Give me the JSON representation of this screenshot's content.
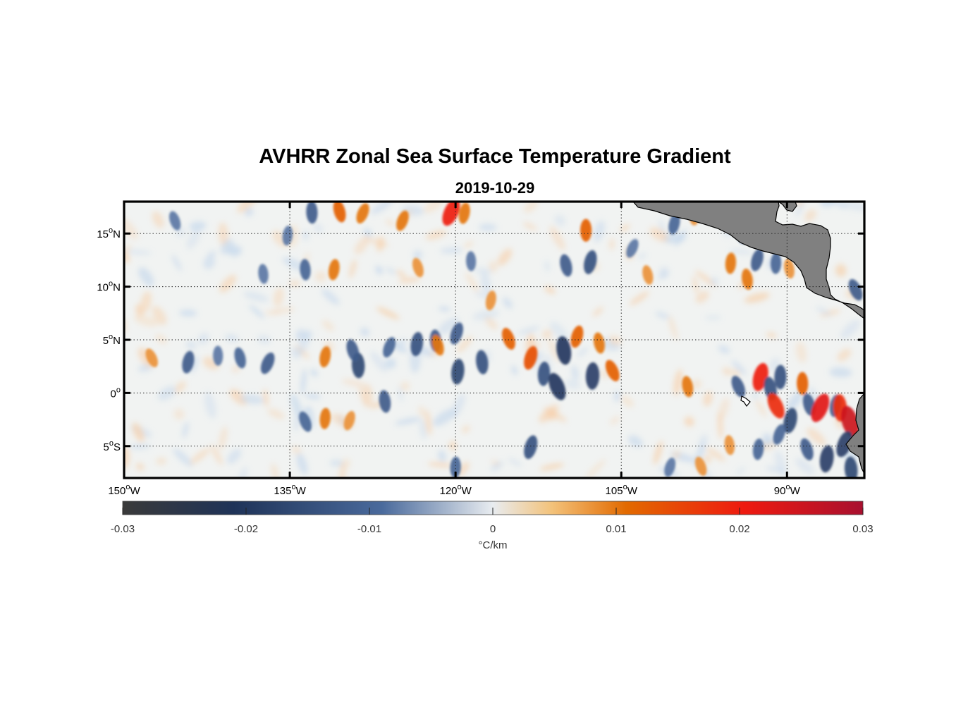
{
  "title": "AVHRR Zonal Sea Surface Temperature Gradient",
  "subtitle": "2019-10-29",
  "map": {
    "lon_range": [
      -150,
      -83
    ],
    "lat_range": [
      -8,
      18
    ],
    "lon_ticks": [
      {
        "value": -150,
        "num": "150",
        "hemi": "W"
      },
      {
        "value": -135,
        "num": "135",
        "hemi": "W"
      },
      {
        "value": -120,
        "num": "120",
        "hemi": "W"
      },
      {
        "value": -105,
        "num": "105",
        "hemi": "W"
      },
      {
        "value": -90,
        "num": "90",
        "hemi": "W"
      }
    ],
    "lat_ticks": [
      {
        "value": 15,
        "num": "15",
        "hemi": "N"
      },
      {
        "value": 10,
        "num": "10",
        "hemi": "N"
      },
      {
        "value": 5,
        "num": "5",
        "hemi": "N"
      },
      {
        "value": 0,
        "num": "0",
        "hemi": ""
      },
      {
        "value": -5,
        "num": "5",
        "hemi": "S"
      }
    ],
    "grid": "dotted",
    "land_color": "#808080",
    "features": [
      {
        "lon": -147.5,
        "lat": 3.3,
        "value": 0.008
      },
      {
        "lon": -144.2,
        "lat": 2.9,
        "value": -0.012
      },
      {
        "lon": -141.5,
        "lat": 3.5,
        "value": -0.008
      },
      {
        "lon": -139.5,
        "lat": 3.3,
        "value": -0.01
      },
      {
        "lon": -137.0,
        "lat": 2.8,
        "value": -0.012
      },
      {
        "lon": -131.8,
        "lat": 3.4,
        "value": 0.01
      },
      {
        "lon": -128.8,
        "lat": 2.6,
        "value": -0.016
      },
      {
        "lon": -129.3,
        "lat": 4.0,
        "value": -0.012
      },
      {
        "lon": -126.0,
        "lat": 4.3,
        "value": -0.01
      },
      {
        "lon": -123.5,
        "lat": 4.6,
        "value": -0.014
      },
      {
        "lon": -121.8,
        "lat": 4.9,
        "value": -0.012
      },
      {
        "lon": -121.6,
        "lat": 4.5,
        "value": 0.01
      },
      {
        "lon": -119.9,
        "lat": 5.6,
        "value": -0.012
      },
      {
        "lon": -119.8,
        "lat": 2.0,
        "value": -0.016
      },
      {
        "lon": -117.6,
        "lat": 2.9,
        "value": -0.014
      },
      {
        "lon": -115.2,
        "lat": 5.1,
        "value": 0.012
      },
      {
        "lon": -113.2,
        "lat": 3.3,
        "value": 0.014
      },
      {
        "lon": -112.0,
        "lat": 1.8,
        "value": -0.014
      },
      {
        "lon": -110.2,
        "lat": 4.0,
        "value": -0.02
      },
      {
        "lon": -110.8,
        "lat": 0.6,
        "value": -0.02
      },
      {
        "lon": -109.0,
        "lat": 5.3,
        "value": 0.012
      },
      {
        "lon": -107.6,
        "lat": 1.6,
        "value": -0.018
      },
      {
        "lon": -107.0,
        "lat": 4.7,
        "value": 0.01
      },
      {
        "lon": -105.8,
        "lat": 2.1,
        "value": 0.012
      },
      {
        "lon": -107.8,
        "lat": 12.3,
        "value": -0.014
      },
      {
        "lon": -108.2,
        "lat": 15.3,
        "value": 0.012
      },
      {
        "lon": -110.0,
        "lat": 12.0,
        "value": -0.012
      },
      {
        "lon": -120.4,
        "lat": 17.0,
        "value": 0.02
      },
      {
        "lon": -119.2,
        "lat": 16.9,
        "value": 0.01
      },
      {
        "lon": -133.0,
        "lat": 17.0,
        "value": -0.012
      },
      {
        "lon": -130.5,
        "lat": 17.1,
        "value": 0.012
      },
      {
        "lon": -128.4,
        "lat": 16.9,
        "value": 0.01
      },
      {
        "lon": -131.0,
        "lat": 11.6,
        "value": 0.01
      },
      {
        "lon": -133.6,
        "lat": 11.6,
        "value": -0.01
      },
      {
        "lon": -123.4,
        "lat": 11.8,
        "value": 0.008
      },
      {
        "lon": -124.8,
        "lat": 16.2,
        "value": 0.01
      },
      {
        "lon": -135.2,
        "lat": 14.8,
        "value": -0.008
      },
      {
        "lon": -137.4,
        "lat": 11.2,
        "value": -0.008
      },
      {
        "lon": -145.4,
        "lat": 16.2,
        "value": -0.008
      },
      {
        "lon": -129.6,
        "lat": -2.6,
        "value": 0.008
      },
      {
        "lon": -131.8,
        "lat": -2.4,
        "value": 0.01
      },
      {
        "lon": -126.4,
        "lat": -0.8,
        "value": -0.012
      },
      {
        "lon": -133.6,
        "lat": -2.7,
        "value": -0.01
      },
      {
        "lon": -113.2,
        "lat": -5.1,
        "value": -0.014
      },
      {
        "lon": -120.0,
        "lat": -7.0,
        "value": -0.01
      },
      {
        "lon": -99.0,
        "lat": 0.6,
        "value": 0.01
      },
      {
        "lon": -94.4,
        "lat": 0.6,
        "value": -0.012
      },
      {
        "lon": -92.4,
        "lat": 1.5,
        "value": 0.02
      },
      {
        "lon": -90.6,
        "lat": 1.5,
        "value": -0.014
      },
      {
        "lon": -91.5,
        "lat": 0.4,
        "value": -0.014
      },
      {
        "lon": -91.0,
        "lat": -1.2,
        "value": 0.018
      },
      {
        "lon": -89.7,
        "lat": -2.6,
        "value": -0.016
      },
      {
        "lon": -88.6,
        "lat": 0.9,
        "value": 0.012
      },
      {
        "lon": -88.0,
        "lat": -1.1,
        "value": -0.012
      },
      {
        "lon": -87.0,
        "lat": -1.4,
        "value": 0.022
      },
      {
        "lon": -85.6,
        "lat": -1.2,
        "value": -0.012
      },
      {
        "lon": -85.2,
        "lat": -1.4,
        "value": 0.018
      },
      {
        "lon": -84.3,
        "lat": -2.7,
        "value": 0.025
      },
      {
        "lon": -84.8,
        "lat": -4.8,
        "value": -0.018
      },
      {
        "lon": -86.4,
        "lat": -6.2,
        "value": -0.018
      },
      {
        "lon": -84.2,
        "lat": -7.2,
        "value": -0.016
      },
      {
        "lon": -88.2,
        "lat": -5.3,
        "value": -0.012
      },
      {
        "lon": -90.7,
        "lat": -3.9,
        "value": -0.01
      },
      {
        "lon": -92.6,
        "lat": -5.3,
        "value": -0.01
      },
      {
        "lon": -95.2,
        "lat": -4.9,
        "value": 0.008
      },
      {
        "lon": -97.8,
        "lat": -6.9,
        "value": 0.008
      },
      {
        "lon": -100.6,
        "lat": -7.0,
        "value": -0.008
      },
      {
        "lon": -95.1,
        "lat": 12.2,
        "value": 0.01
      },
      {
        "lon": -93.6,
        "lat": 10.7,
        "value": 0.01
      },
      {
        "lon": -94.2,
        "lat": 14.9,
        "value": -0.008
      },
      {
        "lon": -92.7,
        "lat": 12.5,
        "value": -0.012
      },
      {
        "lon": -91.0,
        "lat": 12.2,
        "value": -0.01
      },
      {
        "lon": -89.8,
        "lat": 11.7,
        "value": 0.008
      },
      {
        "lon": -83.8,
        "lat": 9.7,
        "value": -0.012
      },
      {
        "lon": -100.2,
        "lat": 15.9,
        "value": -0.01
      },
      {
        "lon": -98.4,
        "lat": 16.7,
        "value": 0.008
      },
      {
        "lon": -102.6,
        "lat": 11.1,
        "value": 0.008
      },
      {
        "lon": -104.0,
        "lat": 13.6,
        "value": -0.008
      },
      {
        "lon": -116.8,
        "lat": 8.7,
        "value": 0.008
      },
      {
        "lon": -118.6,
        "lat": 12.4,
        "value": -0.008
      }
    ]
  },
  "colorbar": {
    "min": -0.03,
    "max": 0.03,
    "ticks": [
      "-0.03",
      "-0.02",
      "-0.01",
      "0",
      "0.01",
      "0.02",
      "0.03"
    ],
    "label": "°C/km",
    "colors": [
      "#3a3a3a",
      "#1f3358",
      "#4a6a9c",
      "#e8ecf0",
      "#f3c27a",
      "#e26a00",
      "#ee1a10",
      "#a8102f"
    ]
  }
}
